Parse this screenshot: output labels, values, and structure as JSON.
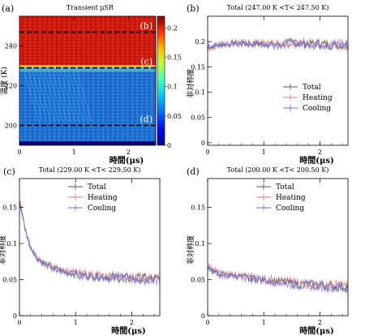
{
  "chart_data": [
    {
      "panel": "(a)",
      "type": "heatmap",
      "title": "Transient μSR",
      "xlabel": "時間(μs)",
      "ylabel": "温度 (K)",
      "xlim": [
        0,
        2.5
      ],
      "ylim": [
        190,
        255
      ],
      "xticks": [
        "0",
        "1",
        "2"
      ],
      "yticks": [
        "200",
        "220",
        "240"
      ],
      "colorbar": {
        "min": 0,
        "max": 0.22,
        "ticks": [
          "0.2",
          "0.15",
          "0.1",
          "0.05",
          "0"
        ]
      },
      "dashed_lines": [
        {
          "label": "(b)",
          "temperature": 247.0
        },
        {
          "label": "(c)",
          "temperature": 229.0
        },
        {
          "label": "(d)",
          "temperature": 200.0
        }
      ],
      "bands": [
        {
          "from": 229.5,
          "to": 255,
          "level": 0.19
        },
        {
          "from": 192,
          "to": 229.5,
          "level": 0.05
        },
        {
          "from": 190,
          "to": 192,
          "level": 0.0
        }
      ],
      "grid": false
    },
    {
      "panel": "(b)",
      "type": "line",
      "title": "Total (247.00 K <T< 247.50 K)",
      "xlabel": "時間(μs)",
      "ylabel": "非対称度",
      "xlim": [
        0,
        2.5
      ],
      "ylim": [
        -0.005,
        0.25
      ],
      "xticks": [
        "0",
        "1",
        "2"
      ],
      "yticks": [
        "0",
        "0.05",
        "0.1",
        "0.15",
        "0.2"
      ],
      "legend": "center-right",
      "series": [
        {
          "name": "Total",
          "color": "#555555",
          "x": [
            0,
            0.25,
            0.5,
            0.75,
            1,
            1.25,
            1.5,
            1.75,
            2,
            2.25,
            2.5
          ],
          "y": [
            0.188,
            0.194,
            0.197,
            0.195,
            0.196,
            0.194,
            0.197,
            0.196,
            0.195,
            0.194,
            0.193
          ]
        },
        {
          "name": "Heating",
          "color": "#e07a7a",
          "x": [
            0,
            0.25,
            0.5,
            0.75,
            1,
            1.25,
            1.5,
            1.75,
            2,
            2.25,
            2.5
          ],
          "y": [
            0.186,
            0.195,
            0.198,
            0.194,
            0.197,
            0.195,
            0.196,
            0.197,
            0.194,
            0.195,
            0.192
          ]
        },
        {
          "name": "Cooling",
          "color": "#6b6be0",
          "x": [
            0,
            0.25,
            0.5,
            0.75,
            1,
            1.25,
            1.5,
            1.75,
            2,
            2.25,
            2.5
          ],
          "y": [
            0.19,
            0.193,
            0.196,
            0.196,
            0.195,
            0.193,
            0.198,
            0.195,
            0.196,
            0.193,
            0.194
          ]
        }
      ]
    },
    {
      "panel": "(c)",
      "type": "line",
      "title": "Total (229.00 K <T< 229.50 K)",
      "xlabel": "時間(μs)",
      "ylabel": "非対称度",
      "xlim": [
        0,
        2.5
      ],
      "ylim": [
        0,
        0.19
      ],
      "xticks": [
        "0",
        "1",
        "2"
      ],
      "yticks": [
        "0",
        "0.05",
        "0.1",
        "0.15"
      ],
      "legend": "top-center",
      "series": [
        {
          "name": "Total",
          "color": "#555555",
          "x": [
            0,
            0.05,
            0.1,
            0.2,
            0.3,
            0.4,
            0.6,
            0.8,
            1,
            1.3,
            1.6,
            2,
            2.5
          ],
          "y": [
            0.16,
            0.14,
            0.12,
            0.095,
            0.082,
            0.074,
            0.066,
            0.061,
            0.058,
            0.055,
            0.054,
            0.052,
            0.05
          ]
        },
        {
          "name": "Heating",
          "color": "#e07a7a",
          "x": [
            0,
            0.05,
            0.1,
            0.2,
            0.3,
            0.4,
            0.6,
            0.8,
            1,
            1.3,
            1.6,
            2,
            2.5
          ],
          "y": [
            0.162,
            0.142,
            0.121,
            0.096,
            0.083,
            0.075,
            0.067,
            0.062,
            0.059,
            0.056,
            0.055,
            0.053,
            0.051
          ]
        },
        {
          "name": "Cooling",
          "color": "#6b6be0",
          "x": [
            0,
            0.05,
            0.1,
            0.2,
            0.3,
            0.4,
            0.6,
            0.8,
            1,
            1.3,
            1.6,
            2,
            2.5
          ],
          "y": [
            0.158,
            0.138,
            0.119,
            0.094,
            0.081,
            0.073,
            0.065,
            0.06,
            0.057,
            0.054,
            0.053,
            0.051,
            0.049
          ]
        }
      ]
    },
    {
      "panel": "(d)",
      "type": "line",
      "title": "Total (200.00 K <T< 200.50 K)",
      "xlabel": "時間(μs)",
      "ylabel": "非対称度",
      "xlim": [
        0,
        2.5
      ],
      "ylim": [
        0,
        0.19
      ],
      "xticks": [
        "0",
        "1",
        "2"
      ],
      "yticks": [
        "0",
        "0.05",
        "0.1",
        "0.15"
      ],
      "legend": "top-center",
      "series": [
        {
          "name": "Total",
          "color": "#555555",
          "x": [
            0,
            0.1,
            0.2,
            0.4,
            0.6,
            0.8,
            1,
            1.3,
            1.6,
            2,
            2.5
          ],
          "y": [
            0.068,
            0.062,
            0.058,
            0.056,
            0.054,
            0.052,
            0.05,
            0.047,
            0.044,
            0.042,
            0.04
          ]
        },
        {
          "name": "Heating",
          "color": "#e07a7a",
          "x": [
            0,
            0.1,
            0.2,
            0.4,
            0.6,
            0.8,
            1,
            1.3,
            1.6,
            2,
            2.5
          ],
          "y": [
            0.07,
            0.063,
            0.059,
            0.057,
            0.055,
            0.053,
            0.051,
            0.048,
            0.045,
            0.043,
            0.041
          ]
        },
        {
          "name": "Cooling",
          "color": "#6b6be0",
          "x": [
            0,
            0.1,
            0.2,
            0.4,
            0.6,
            0.8,
            1,
            1.3,
            1.6,
            2,
            2.5
          ],
          "y": [
            0.066,
            0.061,
            0.057,
            0.055,
            0.053,
            0.051,
            0.049,
            0.046,
            0.043,
            0.041,
            0.039
          ]
        }
      ]
    }
  ]
}
